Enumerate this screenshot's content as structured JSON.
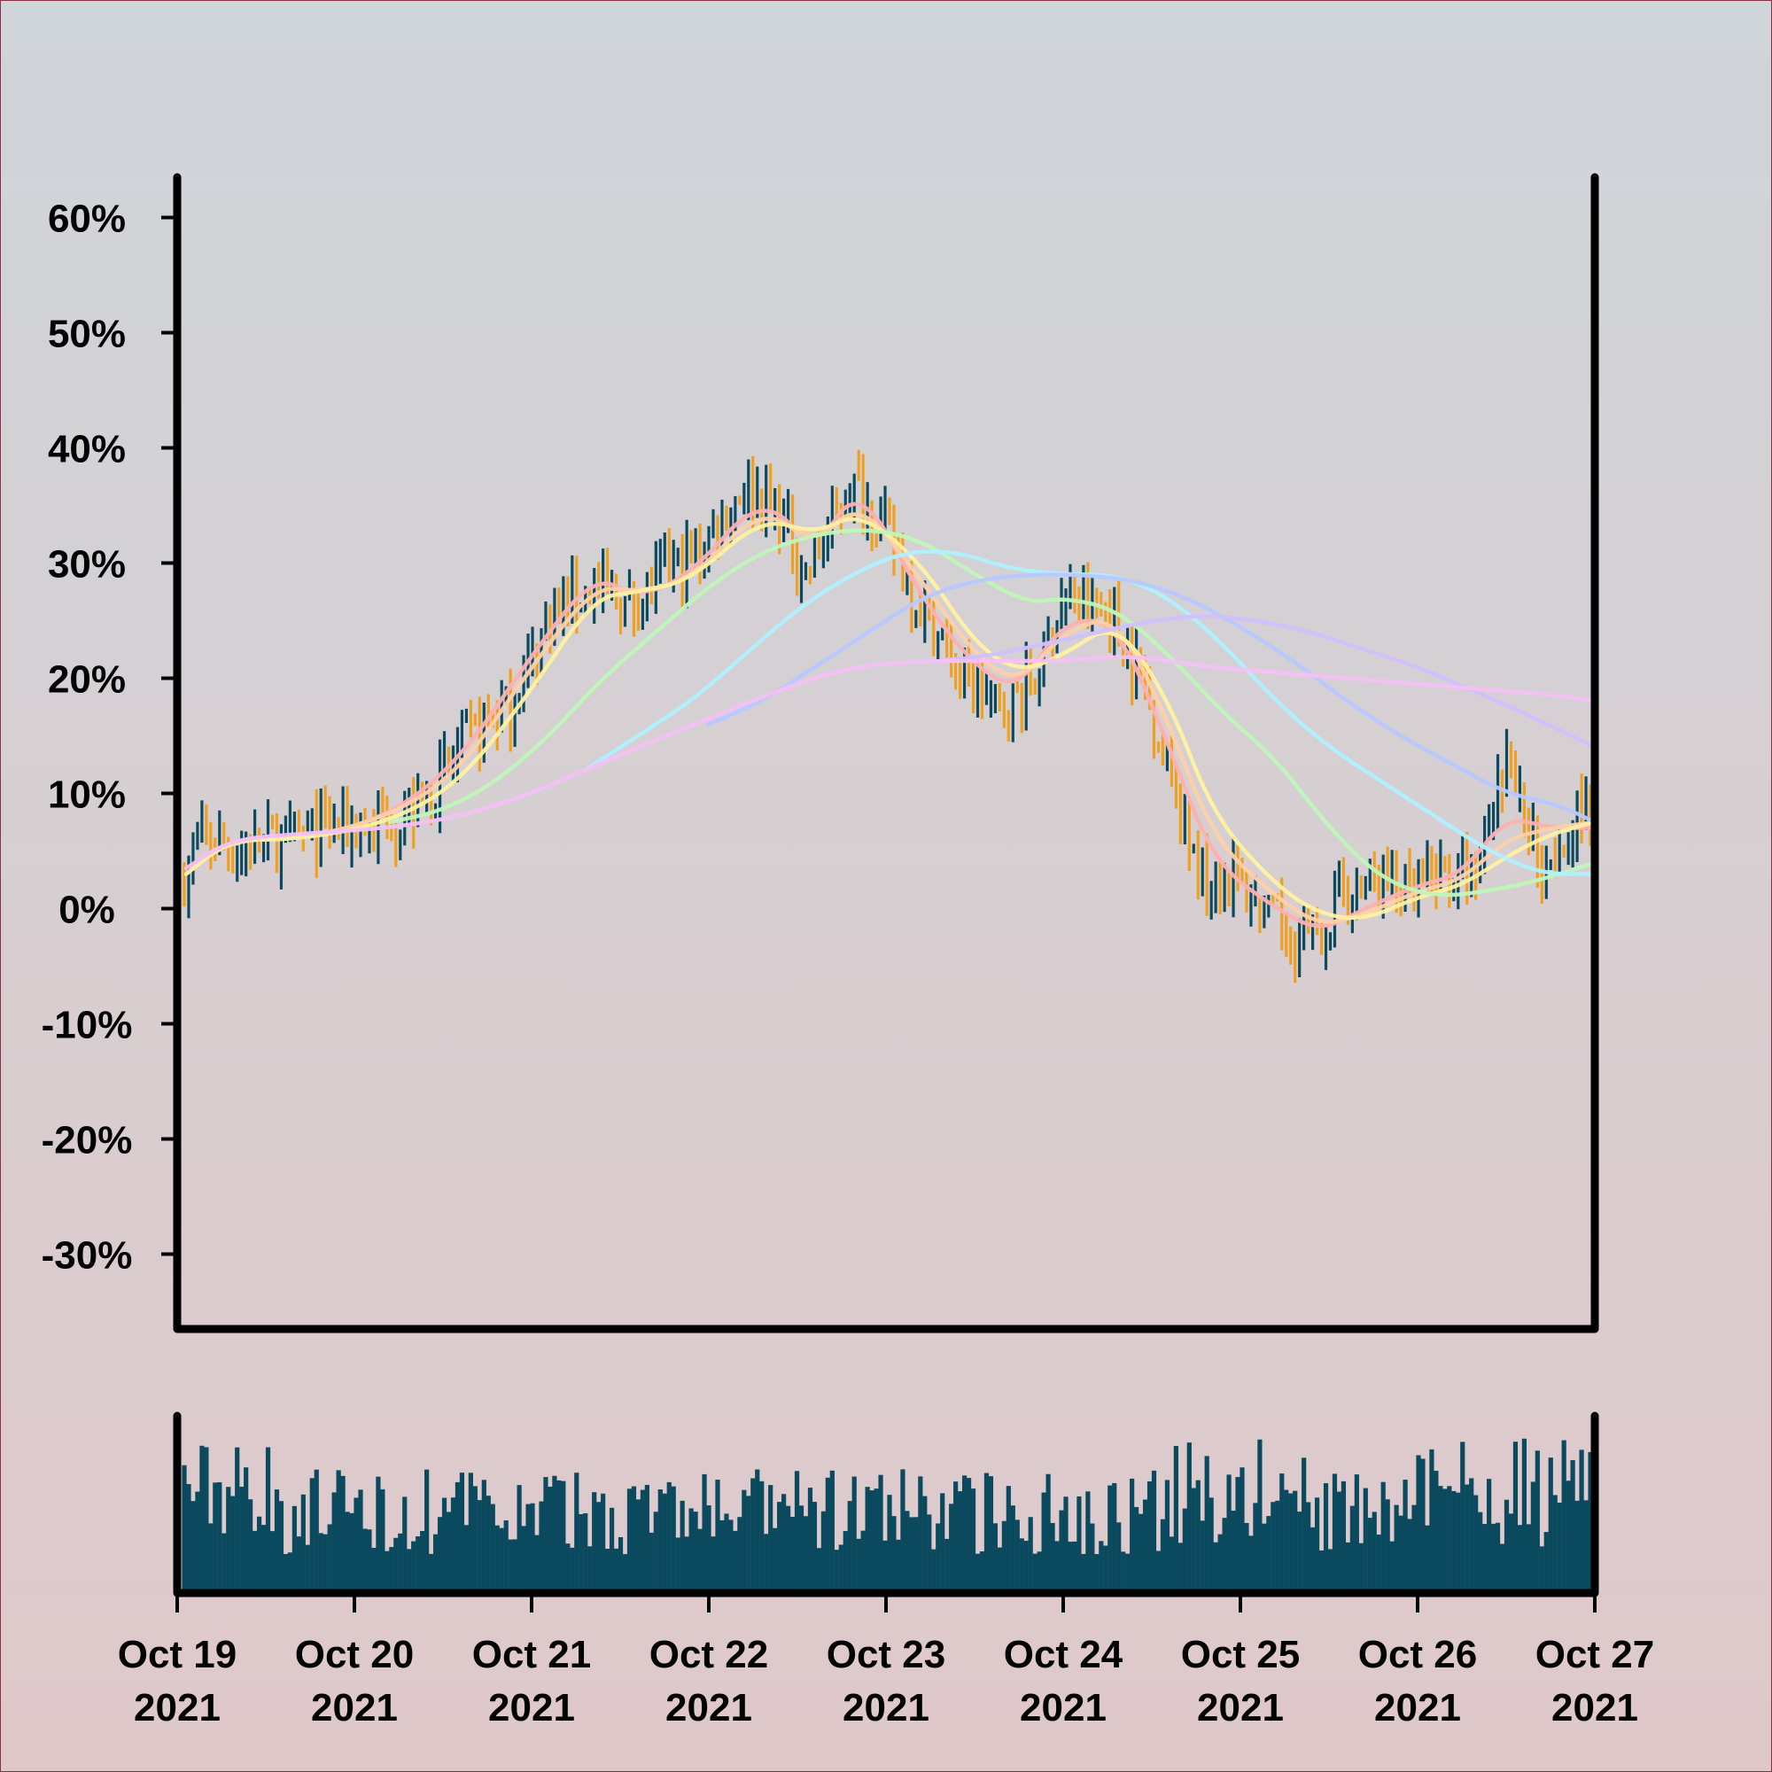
{
  "chart_data": {
    "type": "ohlc",
    "title": "",
    "xlabel": "",
    "ylabel": "",
    "y_axis": {
      "ticks": [
        60,
        50,
        40,
        30,
        20,
        10,
        0,
        -10,
        -20,
        -30
      ],
      "tick_labels": [
        "60%",
        "50%",
        "40%",
        "30%",
        "20%",
        "10%",
        "0%",
        "-10%",
        "-20%",
        "-30%"
      ],
      "ylim": [
        -36.5,
        63.5
      ]
    },
    "x_axis": {
      "dates": [
        "Oct 19",
        "Oct 20",
        "Oct 21",
        "Oct 22",
        "Oct 23",
        "Oct 24",
        "Oct 25",
        "Oct 26",
        "Oct 27"
      ],
      "years": [
        "2021",
        "2021",
        "2021",
        "2021",
        "2021",
        "2021",
        "2021",
        "2021",
        "2021"
      ],
      "xlim_days": [
        0,
        8
      ]
    },
    "price_anchors": [
      {
        "d": 0.0,
        "v": 2
      },
      {
        "d": 0.15,
        "v": 6
      },
      {
        "d": 0.35,
        "v": 5
      },
      {
        "d": 0.6,
        "v": 6
      },
      {
        "d": 0.9,
        "v": 7
      },
      {
        "d": 1.1,
        "v": 7
      },
      {
        "d": 1.4,
        "v": 9
      },
      {
        "d": 1.6,
        "v": 14
      },
      {
        "d": 1.9,
        "v": 18
      },
      {
        "d": 2.1,
        "v": 25
      },
      {
        "d": 2.35,
        "v": 28
      },
      {
        "d": 2.55,
        "v": 26
      },
      {
        "d": 2.75,
        "v": 29
      },
      {
        "d": 2.95,
        "v": 31
      },
      {
        "d": 3.2,
        "v": 37
      },
      {
        "d": 3.4,
        "v": 34
      },
      {
        "d": 3.55,
        "v": 29
      },
      {
        "d": 3.8,
        "v": 37
      },
      {
        "d": 4.0,
        "v": 33
      },
      {
        "d": 4.2,
        "v": 26
      },
      {
        "d": 4.45,
        "v": 20
      },
      {
        "d": 4.65,
        "v": 17
      },
      {
        "d": 4.85,
        "v": 20
      },
      {
        "d": 5.0,
        "v": 27
      },
      {
        "d": 5.25,
        "v": 26
      },
      {
        "d": 5.45,
        "v": 20
      },
      {
        "d": 5.6,
        "v": 12
      },
      {
        "d": 5.75,
        "v": 3
      },
      {
        "d": 5.95,
        "v": 3
      },
      {
        "d": 6.15,
        "v": -1
      },
      {
        "d": 6.4,
        "v": -3
      },
      {
        "d": 6.6,
        "v": 1
      },
      {
        "d": 6.8,
        "v": 3
      },
      {
        "d": 6.95,
        "v": 1
      },
      {
        "d": 7.1,
        "v": 3
      },
      {
        "d": 7.35,
        "v": 3
      },
      {
        "d": 7.5,
        "v": 13
      },
      {
        "d": 7.7,
        "v": 4
      },
      {
        "d": 7.85,
        "v": 7
      },
      {
        "d": 8.0,
        "v": 10
      }
    ],
    "moving_averages": [
      {
        "color": "#ffb0b0",
        "points": [
          [
            0.05,
            3
          ],
          [
            0.3,
            6
          ],
          [
            0.7,
            6
          ],
          [
            1.2,
            8
          ],
          [
            1.6,
            13
          ],
          [
            2.0,
            22
          ],
          [
            2.35,
            29
          ],
          [
            2.6,
            27
          ],
          [
            2.9,
            29
          ],
          [
            3.3,
            36
          ],
          [
            3.6,
            31
          ],
          [
            3.85,
            37
          ],
          [
            4.2,
            27
          ],
          [
            4.5,
            21
          ],
          [
            4.75,
            19
          ],
          [
            5.0,
            25
          ],
          [
            5.3,
            25
          ],
          [
            5.6,
            14
          ],
          [
            5.85,
            4
          ],
          [
            6.2,
            0
          ],
          [
            6.45,
            -2
          ],
          [
            6.7,
            0
          ],
          [
            7.0,
            2
          ],
          [
            7.25,
            3
          ],
          [
            7.5,
            8
          ],
          [
            7.75,
            7
          ],
          [
            8.0,
            7
          ]
        ]
      },
      {
        "color": "#ffd0a8",
        "points": [
          [
            0.05,
            3
          ],
          [
            0.3,
            6
          ],
          [
            0.7,
            6
          ],
          [
            1.2,
            8
          ],
          [
            1.6,
            12
          ],
          [
            2.0,
            21
          ],
          [
            2.35,
            28
          ],
          [
            2.6,
            27.5
          ],
          [
            2.9,
            28.5
          ],
          [
            3.3,
            35
          ],
          [
            3.6,
            31.5
          ],
          [
            3.85,
            35.5
          ],
          [
            4.2,
            28.5
          ],
          [
            4.5,
            22
          ],
          [
            4.75,
            19.5
          ],
          [
            5.0,
            24
          ],
          [
            5.3,
            25.5
          ],
          [
            5.6,
            16
          ],
          [
            5.85,
            6
          ],
          [
            6.2,
            1
          ],
          [
            6.45,
            -1.5
          ],
          [
            6.7,
            -0.5
          ],
          [
            7.0,
            1.5
          ],
          [
            7.25,
            2.5
          ],
          [
            7.5,
            6
          ],
          [
            7.75,
            7
          ],
          [
            8.0,
            7.5
          ]
        ]
      },
      {
        "color": "#fff0a0",
        "points": [
          [
            0.05,
            3
          ],
          [
            0.3,
            6
          ],
          [
            0.7,
            6
          ],
          [
            1.2,
            7.5
          ],
          [
            1.6,
            11
          ],
          [
            2.0,
            19
          ],
          [
            2.35,
            27
          ],
          [
            2.6,
            27.5
          ],
          [
            2.9,
            28.5
          ],
          [
            3.3,
            34
          ],
          [
            3.6,
            32.5
          ],
          [
            3.85,
            34.5
          ],
          [
            4.2,
            30
          ],
          [
            4.5,
            23
          ],
          [
            4.75,
            20.5
          ],
          [
            5.0,
            22
          ],
          [
            5.3,
            25
          ],
          [
            5.6,
            18
          ],
          [
            5.85,
            8
          ],
          [
            6.2,
            2
          ],
          [
            6.45,
            -0.5
          ],
          [
            6.7,
            -1
          ],
          [
            7.0,
            1
          ],
          [
            7.25,
            2
          ],
          [
            7.5,
            4.5
          ],
          [
            7.75,
            6.5
          ],
          [
            8.0,
            7.5
          ]
        ]
      },
      {
        "color": "#c0f5b8",
        "points": [
          [
            1.2,
            7.5
          ],
          [
            1.5,
            8.5
          ],
          [
            1.8,
            11
          ],
          [
            2.1,
            15
          ],
          [
            2.4,
            20
          ],
          [
            2.7,
            24
          ],
          [
            3.0,
            28
          ],
          [
            3.3,
            31
          ],
          [
            3.6,
            32.5
          ],
          [
            3.9,
            33
          ],
          [
            4.2,
            32
          ],
          [
            4.5,
            29
          ],
          [
            4.8,
            26.5
          ],
          [
            5.0,
            27
          ],
          [
            5.3,
            26
          ],
          [
            5.6,
            22
          ],
          [
            5.9,
            17
          ],
          [
            6.2,
            13
          ],
          [
            6.5,
            7
          ],
          [
            6.8,
            2.5
          ],
          [
            7.1,
            1
          ],
          [
            7.4,
            1.5
          ],
          [
            7.7,
            2.5
          ],
          [
            8.0,
            4
          ]
        ]
      },
      {
        "color": "#b0f0ff",
        "points": [
          [
            2.3,
            12
          ],
          [
            2.6,
            15
          ],
          [
            2.9,
            18
          ],
          [
            3.2,
            22
          ],
          [
            3.5,
            26
          ],
          [
            3.8,
            29
          ],
          [
            4.1,
            31
          ],
          [
            4.4,
            31
          ],
          [
            4.7,
            29.5
          ],
          [
            5.0,
            29
          ],
          [
            5.3,
            29
          ],
          [
            5.6,
            27
          ],
          [
            5.9,
            23
          ],
          [
            6.2,
            18
          ],
          [
            6.5,
            14
          ],
          [
            6.8,
            11
          ],
          [
            7.1,
            8
          ],
          [
            7.4,
            5
          ],
          [
            7.7,
            3
          ],
          [
            8.0,
            3
          ]
        ]
      },
      {
        "color": "#b8c8ff",
        "points": [
          [
            3.0,
            16
          ],
          [
            3.3,
            18
          ],
          [
            3.6,
            21
          ],
          [
            3.9,
            24
          ],
          [
            4.2,
            27
          ],
          [
            4.5,
            28.5
          ],
          [
            4.8,
            29
          ],
          [
            5.1,
            29
          ],
          [
            5.4,
            28.5
          ],
          [
            5.7,
            27
          ],
          [
            6.0,
            24.5
          ],
          [
            6.3,
            21.5
          ],
          [
            6.6,
            18
          ],
          [
            6.9,
            15
          ],
          [
            7.2,
            12.5
          ],
          [
            7.5,
            10
          ],
          [
            7.8,
            9
          ],
          [
            8.0,
            7.5
          ]
        ]
      },
      {
        "color": "#d0c0ff",
        "points": [
          [
            4.3,
            21.5
          ],
          [
            4.6,
            22
          ],
          [
            4.9,
            23
          ],
          [
            5.2,
            24
          ],
          [
            5.5,
            25
          ],
          [
            5.8,
            25.5
          ],
          [
            6.1,
            25
          ],
          [
            6.4,
            24
          ],
          [
            6.7,
            22.5
          ],
          [
            7.0,
            21
          ],
          [
            7.3,
            19
          ],
          [
            7.6,
            17
          ],
          [
            8.0,
            14
          ]
        ]
      },
      {
        "color": "#f5c0f5",
        "points": [
          [
            0.05,
            3.5
          ],
          [
            0.3,
            6
          ],
          [
            0.7,
            6.5
          ],
          [
            1.2,
            7
          ],
          [
            1.6,
            8
          ],
          [
            2.0,
            10
          ],
          [
            2.3,
            12
          ],
          [
            2.6,
            14
          ],
          [
            3.0,
            16.5
          ],
          [
            3.4,
            19
          ],
          [
            3.8,
            21
          ],
          [
            4.2,
            21.5
          ],
          [
            4.6,
            21.5
          ],
          [
            5.0,
            21.5
          ],
          [
            5.4,
            22
          ],
          [
            5.8,
            21
          ],
          [
            6.2,
            20.5
          ],
          [
            6.6,
            20
          ],
          [
            7.0,
            19.5
          ],
          [
            7.4,
            19
          ],
          [
            7.8,
            18.5
          ],
          [
            8.0,
            18
          ]
        ]
      }
    ],
    "colors": {
      "up_bar": "#0b4a5e",
      "down_bar": "#f0a020",
      "volume_bar": "#0b4a5e",
      "frame": "#000000",
      "bg_top": "#cfd5d9",
      "bg_bottom": "#dfc8ca"
    },
    "volume": {
      "shown": true,
      "values_relative": "unlabeled"
    },
    "grid": false,
    "legend": "none"
  }
}
